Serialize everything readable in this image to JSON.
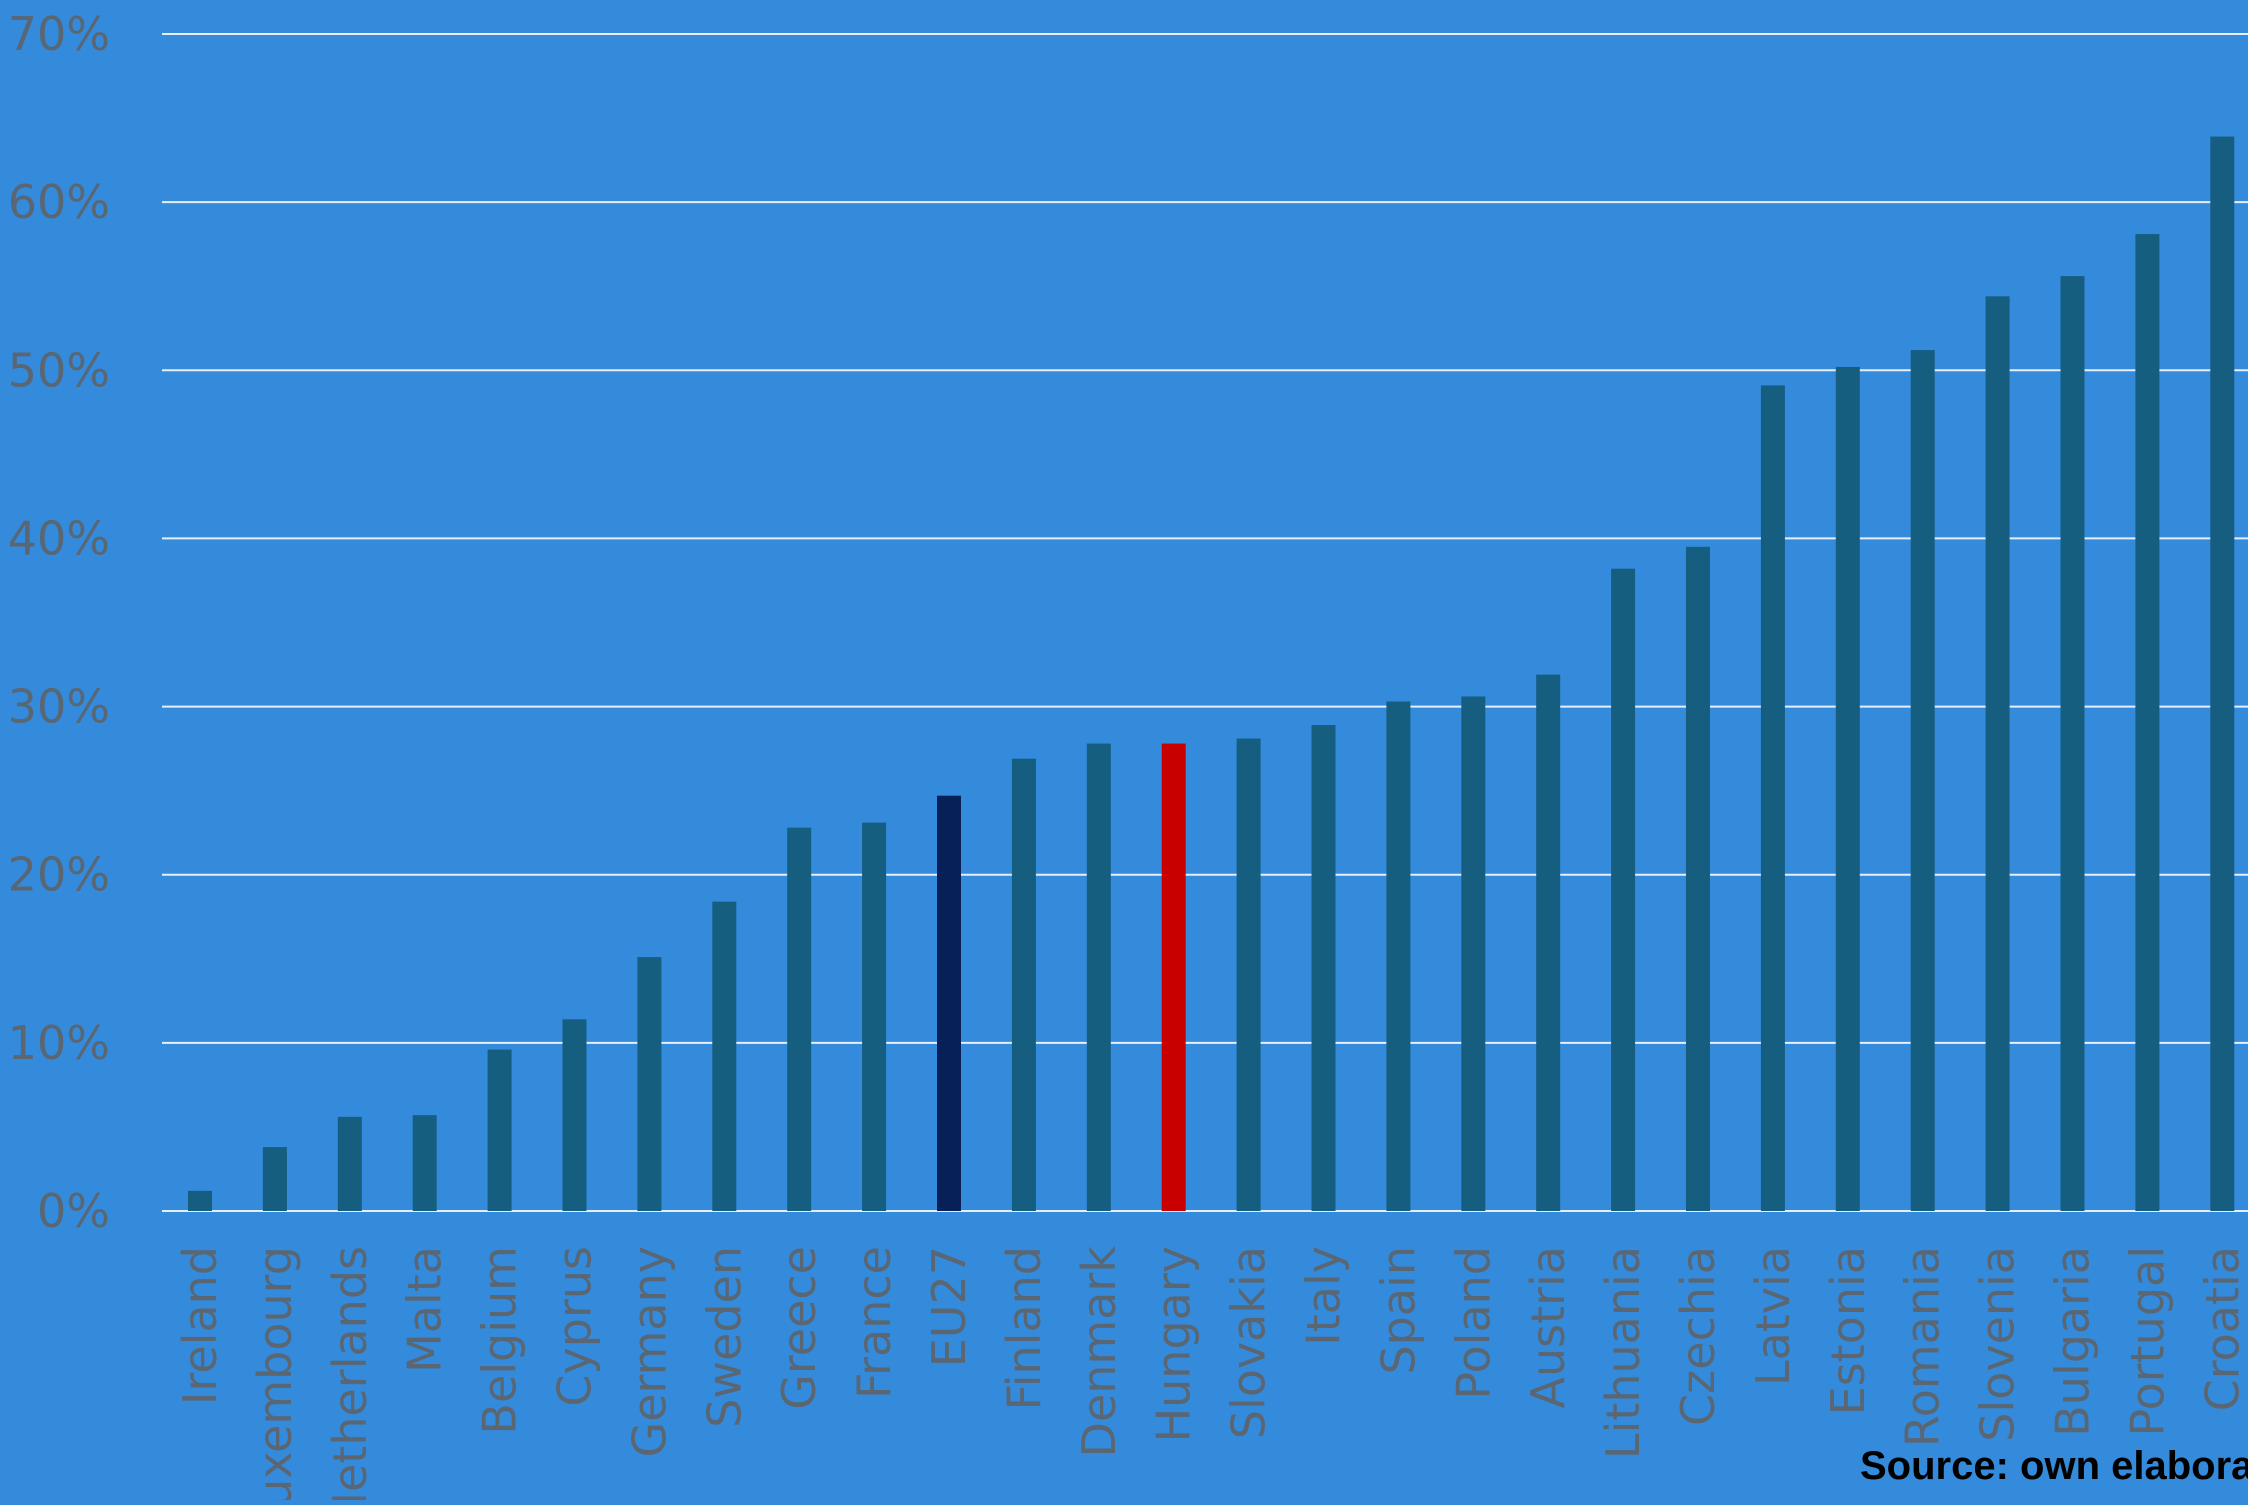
{
  "chart_data": {
    "type": "bar",
    "title": "",
    "xlabel": "",
    "ylabel": "",
    "ylim": [
      0,
      70
    ],
    "yticks": [
      "0%",
      "10%",
      "20%",
      "30%",
      "40%",
      "50%",
      "60%",
      "70%"
    ],
    "grid": true,
    "categories": [
      "Ireland",
      "Luxembourg",
      "Netherlands",
      "Malta",
      "Belgium",
      "Cyprus",
      "Germany",
      "Sweden",
      "Greece",
      "France",
      "EU27",
      "Finland",
      "Denmark",
      "Hungary",
      "Slovakia",
      "Italy",
      "Spain",
      "Poland",
      "Austria",
      "Lithuania",
      "Czechia",
      "Latvia",
      "Estonia",
      "Romania",
      "Slovenia",
      "Bulgaria",
      "Portugal",
      "Croatia"
    ],
    "values": [
      1.2,
      3.8,
      5.6,
      5.7,
      9.6,
      11.4,
      15.1,
      18.4,
      22.8,
      23.1,
      24.7,
      26.9,
      27.8,
      27.8,
      28.1,
      28.9,
      30.3,
      30.6,
      31.9,
      38.2,
      39.5,
      49.1,
      50.2,
      51.2,
      54.4,
      55.6,
      58.1,
      63.9
    ],
    "colors": {
      "default": "#155e80",
      "EU27": "#082058",
      "Hungary": "#c80000"
    }
  },
  "source": "Source: own elaboration"
}
